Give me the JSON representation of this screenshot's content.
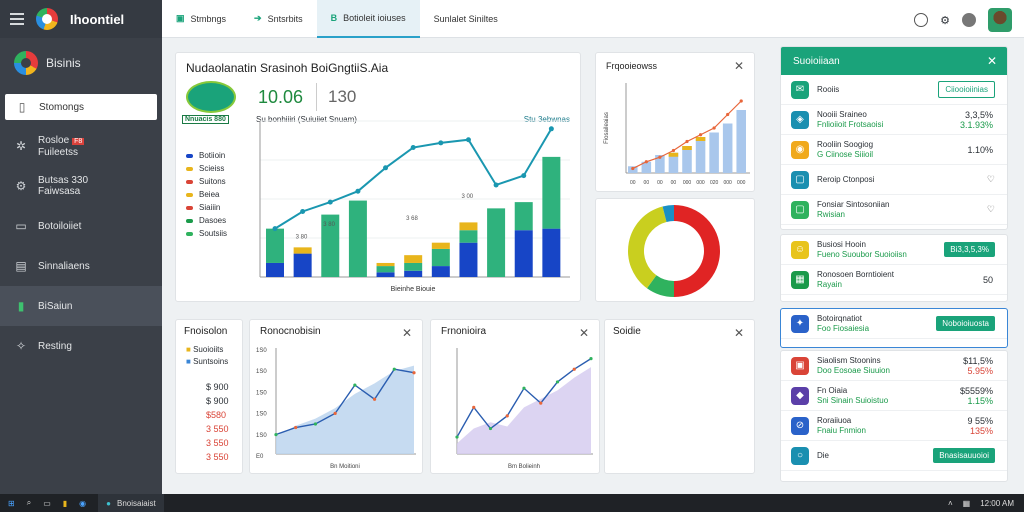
{
  "app": {
    "title": "Ihoontiel"
  },
  "topbar": {
    "tabs": [
      {
        "label": "Stmbngs"
      },
      {
        "label": "Sntsrbits"
      },
      {
        "label": "Botioleit ioiuses"
      },
      {
        "label": "Sunlalet Siniltes"
      }
    ]
  },
  "sidebar": {
    "brand": "Bisinis",
    "items": [
      {
        "label": "Stomongs"
      },
      {
        "line1": "Rosloe",
        "badge": "F8",
        "line2": "Fuileetss"
      },
      {
        "line1": "Butsas 330",
        "line2": "Faiwsasa"
      },
      {
        "label": "Botoiloiiet"
      },
      {
        "label": "Sinnaliaens"
      },
      {
        "label": "BiSaiun"
      },
      {
        "label": "Resting"
      }
    ]
  },
  "main_card": {
    "title": "Nudaolanatin Srasinoh BoiGngtiiS.Aia",
    "kpi_value": "10.06",
    "kpi_secondary": "130",
    "badge": "Nnuacis 880",
    "caption": "Su bonhiiiri  (Suiuiiet Snuam)",
    "corner": "Stu 3ebwnas",
    "legend": [
      "Botiioin",
      "Scieiss",
      "Suitons",
      "Beiea",
      "Siaiiin",
      "Dasoes",
      "Soutsiis"
    ],
    "xlabel": "Bieinhe Biouie",
    "bar_labels": [
      "3 80",
      "3 80",
      "3 68",
      "3 00"
    ],
    "colors": {
      "green": "#2fb27d",
      "blue": "#1745c6",
      "yellow": "#e8b51c",
      "teal": "#1aa38e",
      "line": "#1a97b0"
    }
  },
  "chart_data": [
    {
      "type": "bar",
      "title": "Nudaolanatin Srasinoh BoiGngtiiS.Aia",
      "categories": [
        "1",
        "2",
        "3",
        "4",
        "5",
        "6",
        "7",
        "8",
        "9",
        "10",
        "11"
      ],
      "series": [
        {
          "name": "Botiioin",
          "values": [
            18,
            30,
            0,
            0,
            6,
            8,
            14,
            44,
            0,
            60,
            62
          ]
        },
        {
          "name": "Scieiss",
          "values": [
            44,
            0,
            80,
            98,
            8,
            10,
            22,
            16,
            88,
            36,
            92
          ]
        },
        {
          "name": "Suitons",
          "values": [
            0,
            8,
            0,
            0,
            4,
            10,
            8,
            10,
            0,
            0,
            0
          ]
        }
      ],
      "line": [
        62,
        84,
        96,
        110,
        140,
        166,
        172,
        176,
        118,
        130,
        190
      ],
      "ylim": [
        0,
        200
      ]
    },
    {
      "type": "bar",
      "title": "Frqooieowss",
      "categories": [
        "0.0",
        "0.5",
        "0.6",
        "1.0",
        "1.5",
        "2.0",
        "2.5",
        "3.0",
        "4.0"
      ],
      "values": [
        3,
        5,
        8,
        9,
        12,
        16,
        18,
        22,
        28
      ],
      "line": [
        2,
        5,
        7,
        10,
        14,
        17,
        20,
        26,
        32
      ],
      "ylim": [
        0,
        40
      ]
    },
    {
      "type": "pie",
      "slices": [
        {
          "value": 50,
          "color": "#e02424"
        },
        {
          "value": 10,
          "color": "#2fb25e"
        },
        {
          "value": 36,
          "color": "#c9cf1f"
        },
        {
          "value": 4,
          "color": "#1a8fc4"
        }
      ]
    },
    {
      "type": "area",
      "title": "Ronocnobisin",
      "categories": [
        "1",
        "2",
        "3",
        "4",
        "5",
        "6",
        "7",
        "8"
      ],
      "values": [
        20,
        32,
        40,
        52,
        68,
        80,
        94,
        100
      ],
      "line": [
        22,
        30,
        34,
        46,
        78,
        62,
        96,
        92
      ],
      "ylim": [
        0,
        120
      ]
    },
    {
      "type": "area",
      "title": "Frnonioira",
      "categories": [
        "1",
        "2",
        "3",
        "4",
        "5",
        "6",
        "7",
        "8",
        "9"
      ],
      "values": [
        10,
        24,
        30,
        26,
        44,
        52,
        60,
        72,
        82
      ],
      "line": [
        16,
        44,
        24,
        36,
        62,
        48,
        68,
        80,
        90
      ],
      "ylim": [
        0,
        100
      ]
    }
  ],
  "freq_card": {
    "title": "Frqooieowss",
    "ylabel": "Fiosaileaias",
    "xticks": [
      "00",
      "00",
      "00",
      "00",
      "000",
      "000",
      "020",
      "000",
      "000"
    ]
  },
  "stats_card": {
    "title": "Fnoisolon",
    "legend": [
      "Suoioiits",
      "Suntsoins"
    ],
    "values": [
      "$ 900",
      "$ 900",
      "$580",
      "3 550",
      "3 550",
      "3 550"
    ]
  },
  "area1": {
    "title": "Ronocnobisin",
    "yticks": [
      "1S0",
      "1S0",
      "1S0",
      "1S0",
      "1S0",
      "E0"
    ],
    "xlabel": "Bn Moitioni"
  },
  "area2": {
    "title": "Frnonioira",
    "xlabel": "Bm Bolieinh"
  },
  "empty_card": {
    "title": "Soidie"
  },
  "right_panel": {
    "header": "Suoioiiaan",
    "rows": [
      {
        "icon": "mail-icon",
        "label": "Rooiis",
        "tag": "Ciiooioiinias"
      },
      {
        "icon": "shield-icon",
        "label": "Nooiii Sraineo",
        "sub": "Fnlioiioit  Frotsaoisi",
        "value": "3,3,5%",
        "value2": "3.1.93%"
      },
      {
        "icon": "coin-icon",
        "label": "Rooliin Soogiog",
        "sub": "G Ciinose Siiioil",
        "value": "1.10%"
      },
      {
        "icon": "chat-icon",
        "label": "Reroip Ctonposi"
      },
      {
        "icon": "chat-icon",
        "label": "Fonsiar Sintosoniian",
        "sub": "Rwisian"
      },
      {
        "icon": "smile-icon",
        "label": "Busiosi Hooin",
        "sub": "Fueno Suoubor Suoioiisn",
        "tag": "Bi3,3,5,3%"
      },
      {
        "icon": "grid-icon",
        "label": "Ronosoen Borntioient",
        "sub": "Rayain",
        "value": "50"
      },
      {
        "icon": "star-icon",
        "label": "Botoirqnatiot",
        "sub": "Foo  Fiosaiesia",
        "tag": "Noboioiuosta"
      },
      {
        "icon": "box-icon",
        "label": "Siaolism Stoonins",
        "sub": "Doo Eosoae Siuuion",
        "value": "$11,5%",
        "value2": "5.95%"
      },
      {
        "icon": "cube-icon",
        "label": "Fn Oiaia",
        "sub": "Sni Sinain Suioistuo",
        "value": "$5559%",
        "value2": "1.15%"
      },
      {
        "icon": "link-icon",
        "label": "Roraiiuoa",
        "sub": "Fnaiu Fnmion",
        "value": "9 55%",
        "value2": "135%"
      },
      {
        "icon": "circle-icon",
        "label": "Die",
        "tag": "Bnasisauuoioi"
      }
    ]
  },
  "taskbar": {
    "app": "Bnoisaiaist",
    "time": "12:00 AM"
  }
}
